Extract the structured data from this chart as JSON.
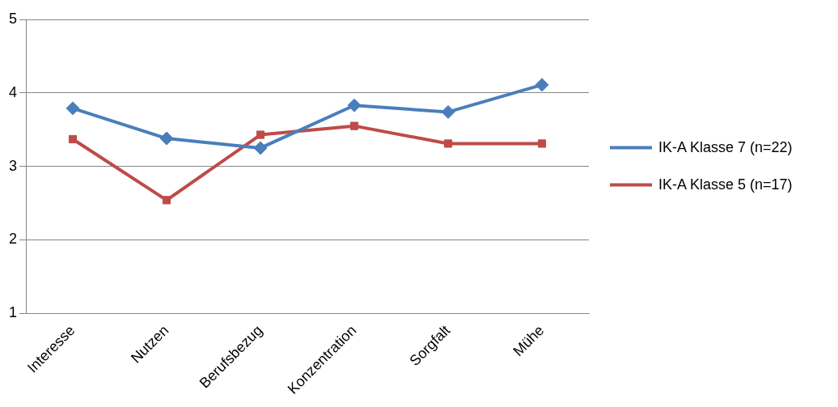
{
  "chart_data": {
    "type": "line",
    "categories": [
      "Interesse",
      "Nutzen",
      "Berufsbezug",
      "Konzentration",
      "Sorgfalt",
      "Mühe"
    ],
    "series": [
      {
        "name": "IK-A Klasse 7 (n=22)",
        "color": "#4a7ebb",
        "marker": "diamond",
        "values": [
          3.79,
          3.38,
          3.25,
          3.83,
          3.74,
          4.11
        ]
      },
      {
        "name": "IK-A Klasse 5 (n=17)",
        "color": "#be4b48",
        "marker": "square",
        "values": [
          3.37,
          2.54,
          3.43,
          3.55,
          3.31,
          3.31
        ]
      }
    ],
    "ylim": [
      1,
      5
    ],
    "yticks": [
      1,
      2,
      3,
      4,
      5
    ],
    "grid": "y",
    "legend": "right",
    "line_style": "solid"
  }
}
